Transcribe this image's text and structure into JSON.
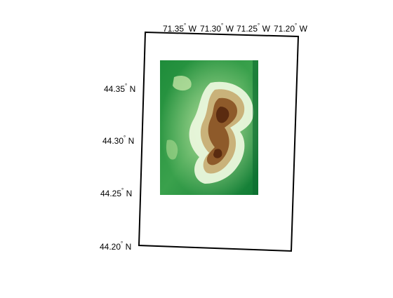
{
  "map": {
    "lon_labels": [
      {
        "deg": "71.35",
        "hemi": "W"
      },
      {
        "deg": "71.30",
        "hemi": "W"
      },
      {
        "deg": "71.25",
        "hemi": "W"
      },
      {
        "deg": "71.20",
        "hemi": "W"
      }
    ],
    "lat_labels": [
      {
        "deg": "44.35",
        "hemi": "N"
      },
      {
        "deg": "44.30",
        "hemi": "N"
      },
      {
        "deg": "44.25",
        "hemi": "N"
      },
      {
        "deg": "44.20",
        "hemi": "N"
      }
    ],
    "colormap": {
      "low": "#0b6b2e",
      "mid": "#d9f2c4",
      "high": "#5a2b10"
    },
    "frame_color": "#000000"
  }
}
